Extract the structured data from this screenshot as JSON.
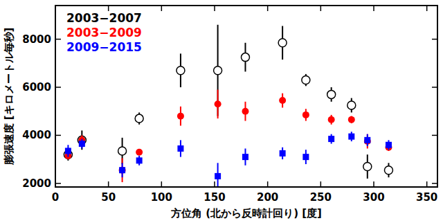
{
  "chart_data": {
    "type": "scatter",
    "x_label": "方位角 (北から反時計回り) [度]",
    "y_label": "膨張速度 [キロメートル毎秒]",
    "x": [
      12,
      25,
      63,
      79,
      118,
      153,
      179,
      214,
      236,
      260,
      279,
      294,
      314
    ],
    "series": [
      {
        "name": "2003−2007",
        "color": "#000000",
        "marker": "circle-open",
        "values": [
          3200,
          3800,
          3350,
          4700,
          6700,
          6700,
          7250,
          7850,
          6300,
          5700,
          5250,
          2700,
          2550
        ],
        "errors": [
          250,
          400,
          550,
          250,
          700,
          1900,
          600,
          700,
          250,
          300,
          300,
          500,
          300
        ]
      },
      {
        "name": "2003−2009",
        "color": "#ff0000",
        "marker": "circle",
        "values": [
          3150,
          3800,
          2550,
          3300,
          4800,
          5300,
          5000,
          5450,
          4850,
          4650,
          4650,
          3750,
          3500
        ],
        "errors": [
          150,
          200,
          500,
          100,
          400,
          600,
          400,
          300,
          250,
          200,
          150,
          300,
          150
        ]
      },
      {
        "name": "2009−2015",
        "color": "#0000ff",
        "marker": "square",
        "values": [
          3350,
          3650,
          2550,
          2950,
          3450,
          2300,
          3100,
          3250,
          3100,
          3850,
          3950,
          3800,
          3600
        ],
        "errors": [
          250,
          200,
          300,
          200,
          350,
          550,
          350,
          250,
          300,
          200,
          200,
          250,
          200
        ]
      }
    ],
    "xlim": [
      0,
      360
    ],
    "xticks": [
      0,
      50,
      100,
      150,
      200,
      250,
      300,
      350
    ],
    "ylim": [
      1850,
      9400
    ],
    "yticks": [
      2000,
      4000,
      6000,
      8000
    ],
    "legend": "upper-left",
    "grid": false
  }
}
